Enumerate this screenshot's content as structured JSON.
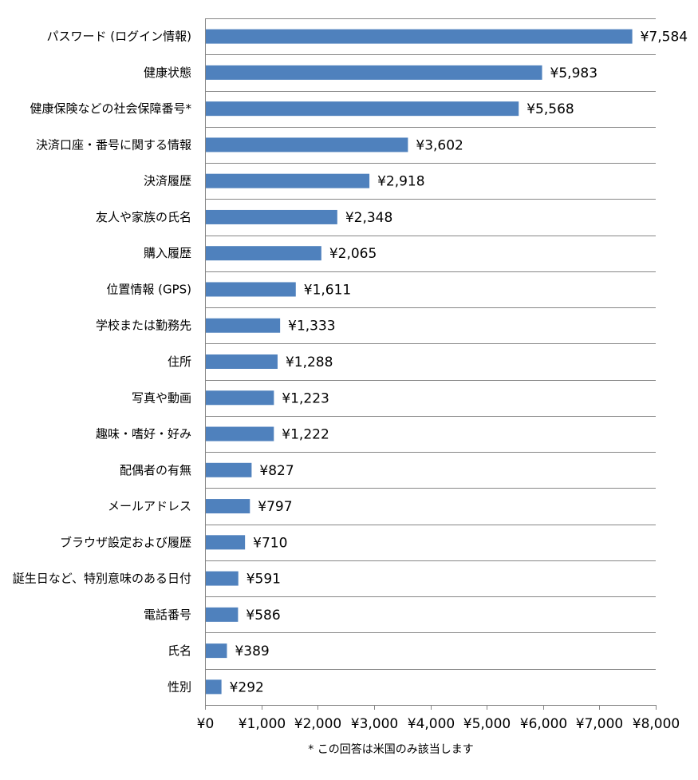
{
  "chart_data": {
    "type": "bar",
    "orientation": "horizontal",
    "categories": [
      "パスワード (ログイン情報)",
      "健康状態",
      "健康保険などの社会保障番号*",
      "決済口座・番号に関する情報",
      "決済履歴",
      "友人や家族の氏名",
      "購入履歴",
      "位置情報 (GPS)",
      "学校または勤務先",
      "住所",
      "写真や動画",
      "趣味・嗜好・好み",
      "配偶者の有無",
      "メールアドレス",
      "ブラウザ設定および履歴",
      "誕生日など、特別意味のある日付",
      "電話番号",
      "氏名",
      "性別"
    ],
    "values": [
      7584,
      5983,
      5568,
      3602,
      2918,
      2348,
      2065,
      1611,
      1333,
      1288,
      1223,
      1222,
      827,
      797,
      710,
      591,
      586,
      389,
      292
    ],
    "value_labels": [
      "¥7,584",
      "¥5,983",
      "¥5,568",
      "¥3,602",
      "¥2,918",
      "¥2,348",
      "¥2,065",
      "¥1,611",
      "¥1,333",
      "¥1,288",
      "¥1,223",
      "¥1,222",
      "¥827",
      "¥797",
      "¥710",
      "¥591",
      "¥586",
      "¥389",
      "¥292"
    ],
    "xlim": [
      0,
      8000
    ],
    "x_ticks": [
      0,
      1000,
      2000,
      3000,
      4000,
      5000,
      6000,
      7000,
      8000
    ],
    "x_tick_labels": [
      "¥0",
      "¥1,000",
      "¥2,000",
      "¥3,000",
      "¥4,000",
      "¥5,000",
      "¥6,000",
      "¥7,000",
      "¥8,000"
    ],
    "bar_color": "#4f81bd",
    "grid_color": "#868686",
    "grid": "horizontal separators between categories",
    "legend": "none",
    "footnote": "* この回答は米国のみ該当します"
  }
}
